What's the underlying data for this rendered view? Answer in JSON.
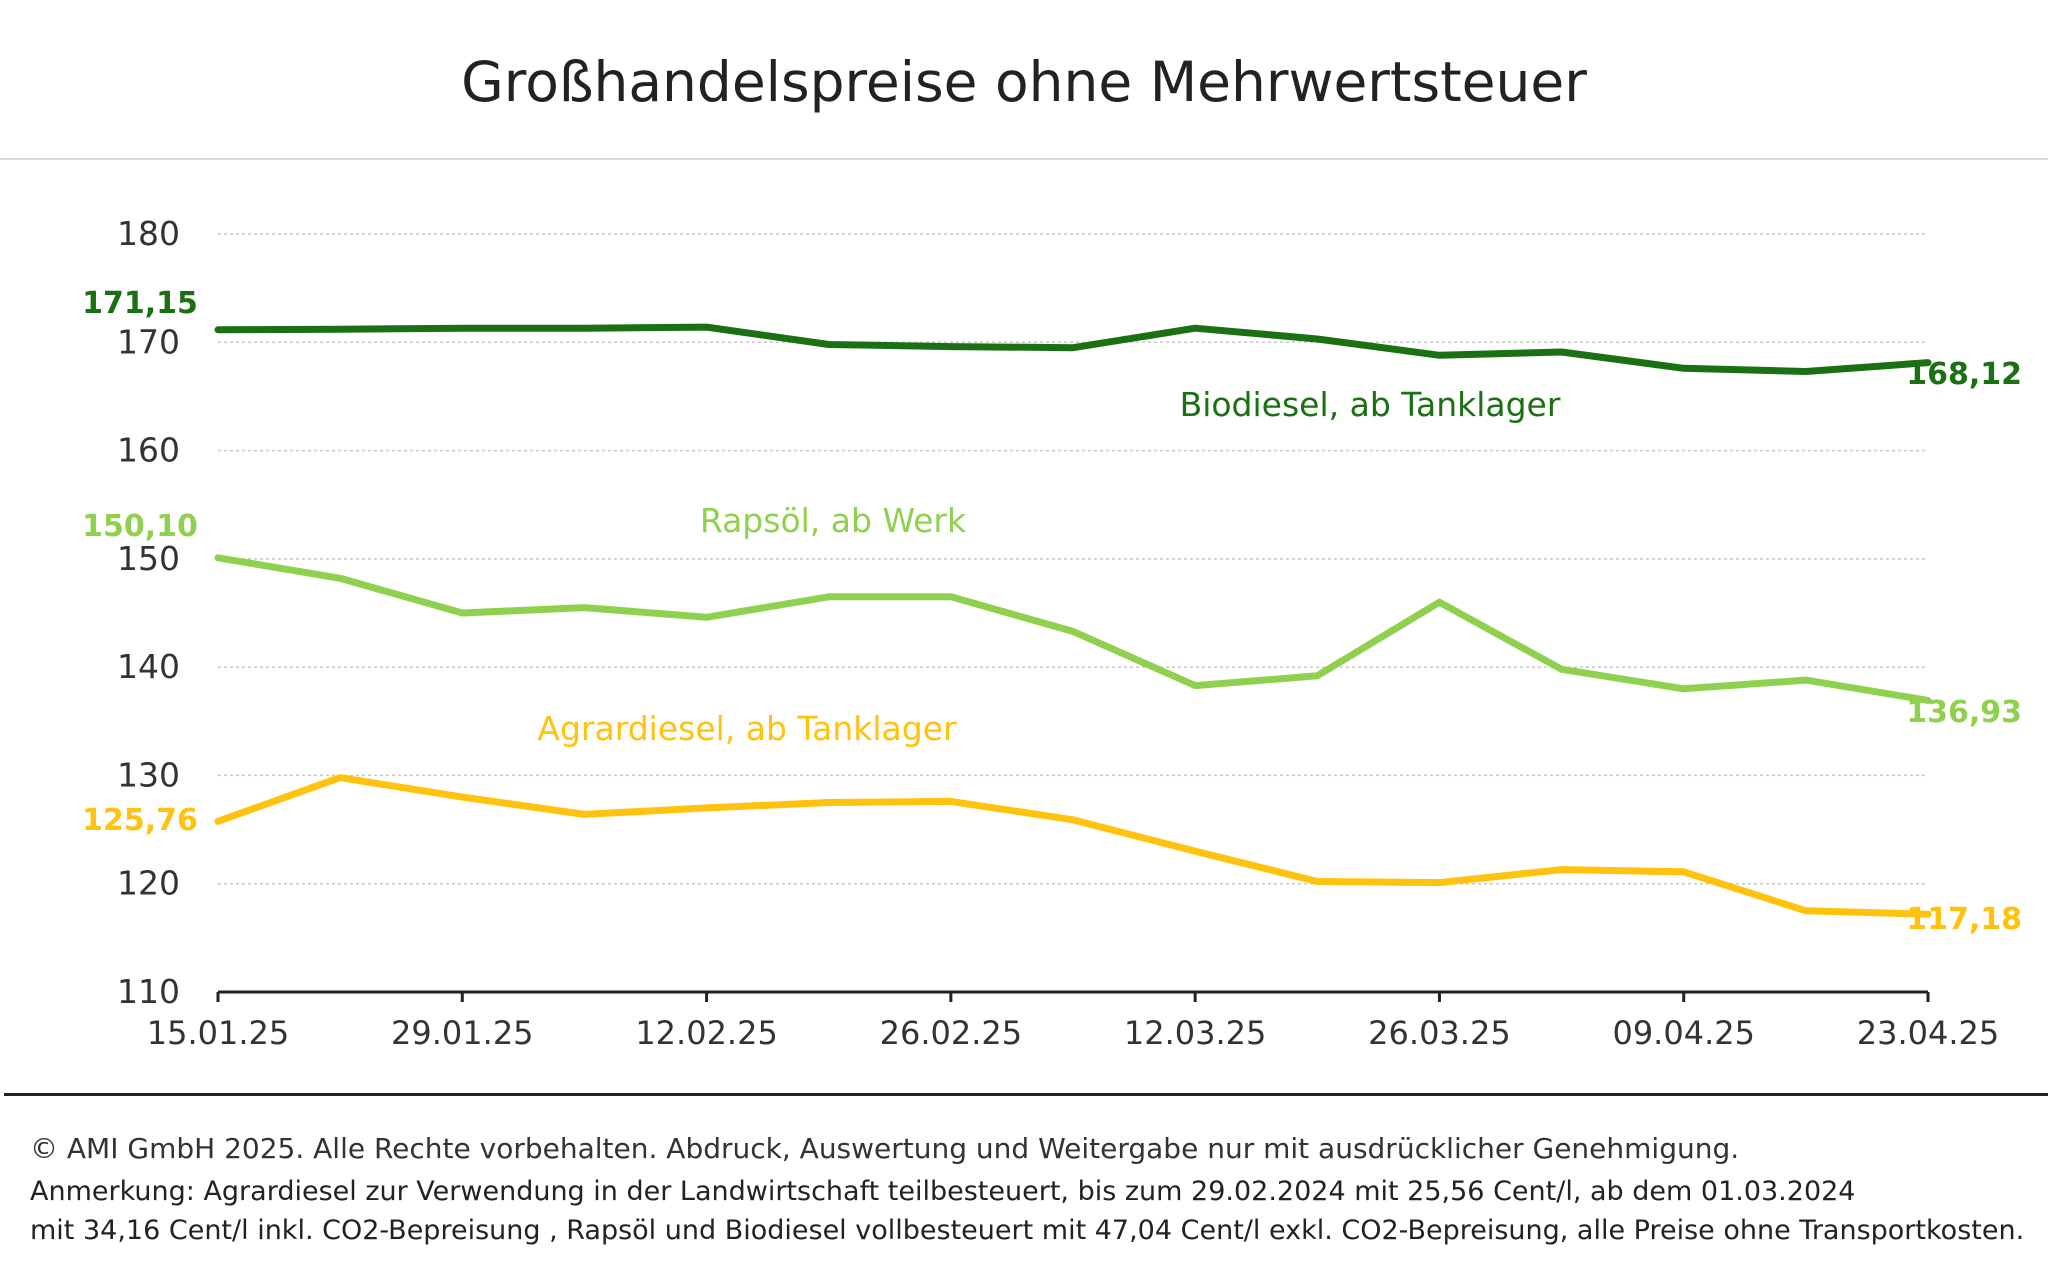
{
  "title": "Großhandelspreise ohne Mehrwertsteuer",
  "footer": {
    "copyright": "© AMI GmbH 2025.  Alle Rechte vorbehalten.  Abdruck, Auswertung und Weitergabe nur mit ausdrücklicher Genehmigung.",
    "note_line1": "Anmerkung: Agrardiesel zur Verwendung in der Landwirtschaft teilbesteuert, bis zum 29.02.2024 mit 25,56 Cent/l, ab dem 01.03.2024",
    "note_line2": "mit 34,16 Cent/l inkl. CO2-Bepreisung , Rapsöl und Biodiesel vollbesteuert mit 47,04 Cent/l exkl. CO2-Bepreisung, alle Preise ohne Transportkosten."
  },
  "chart_data": {
    "type": "line",
    "title": "Großhandelspreise ohne Mehrwertsteuer",
    "ylim": [
      110,
      180
    ],
    "yticks": [
      110,
      120,
      130,
      140,
      150,
      160,
      170,
      180
    ],
    "x_dates": [
      "15.01.25",
      "22.01.25",
      "29.01.25",
      "05.02.25",
      "12.02.25",
      "19.02.25",
      "26.02.25",
      "05.03.25",
      "12.03.25",
      "19.03.25",
      "26.03.25",
      "02.04.25",
      "09.04.25",
      "16.04.25",
      "23.04.25"
    ],
    "xtick_labels": [
      "15.01.25",
      "29.01.25",
      "12.02.25",
      "26.02.25",
      "12.03.25",
      "26.03.25",
      "09.04.25",
      "23.04.25"
    ],
    "grid": "horizontal dotted",
    "series": [
      {
        "name": "Biodiesel, ab Tanklager",
        "color": "#1a7012",
        "values": [
          171.15,
          171.2,
          171.3,
          171.3,
          171.4,
          169.8,
          169.6,
          169.5,
          171.3,
          170.3,
          168.8,
          169.1,
          167.6,
          167.3,
          168.12
        ],
        "start_label": "171,15",
        "end_label": "168,12"
      },
      {
        "name": "Rapsöl, ab Werk",
        "color": "#8fd14f",
        "values": [
          150.1,
          148.2,
          145.0,
          145.5,
          144.6,
          146.5,
          146.5,
          143.3,
          138.3,
          139.2,
          146.0,
          139.8,
          138.0,
          138.8,
          136.93
        ],
        "start_label": "150,10",
        "end_label": "136,93"
      },
      {
        "name": "Agrardiesel, ab Tanklager",
        "color": "#ffc20e",
        "values": [
          125.76,
          129.8,
          128.0,
          126.4,
          127.0,
          127.5,
          127.6,
          125.9,
          123.0,
          120.2,
          120.1,
          121.3,
          121.1,
          117.5,
          117.18
        ],
        "start_label": "125,76",
        "end_label": "117,18"
      }
    ]
  }
}
